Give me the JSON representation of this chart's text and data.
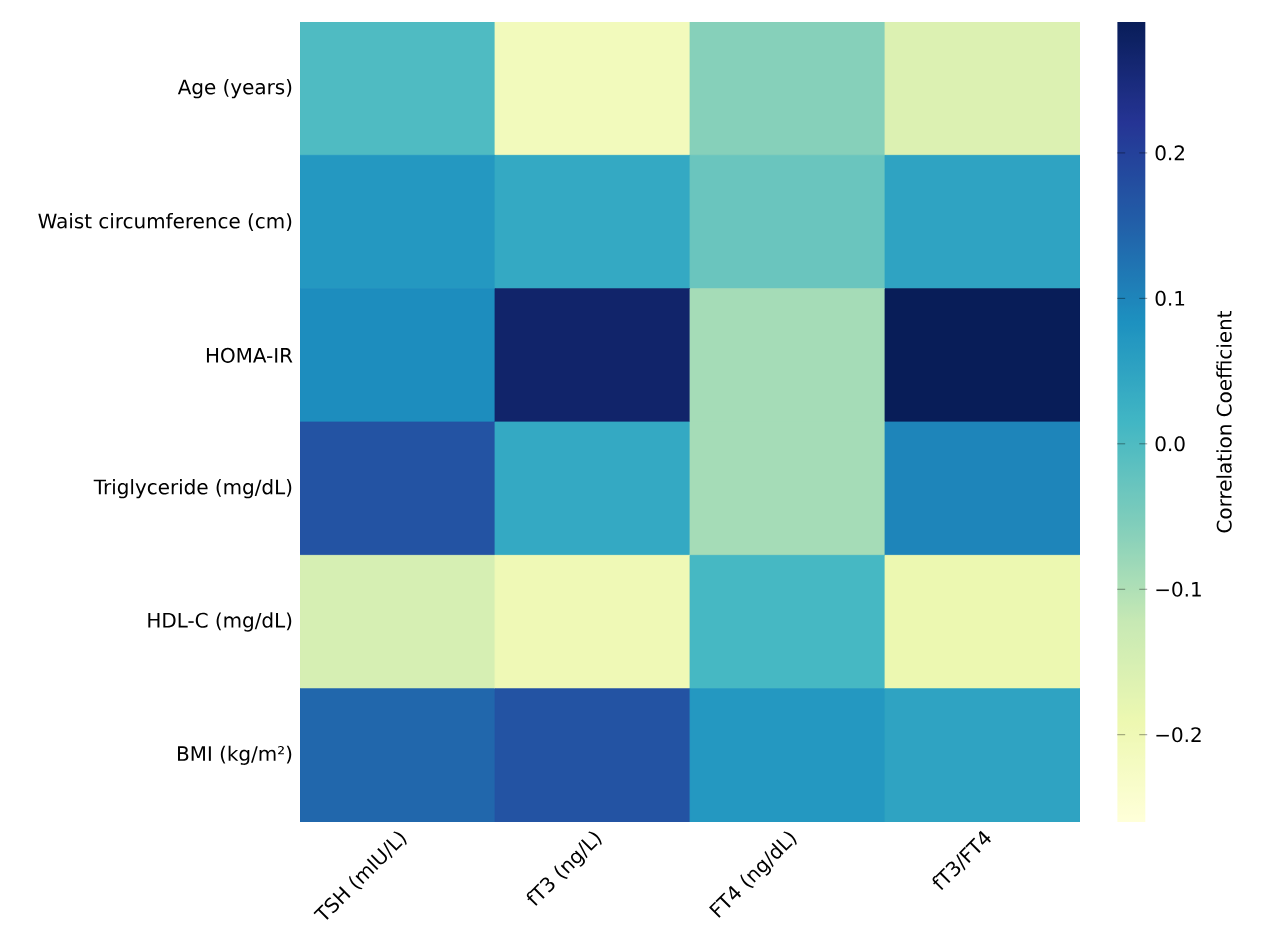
{
  "chart_data": {
    "type": "heatmap",
    "categories": [
      "TSH (mIU/L)",
      "fT3 (ng/L)",
      "FT4 (ng/dL)",
      "fT3/FT4"
    ],
    "y_categories": [
      "Age (years)",
      "Waist circumference (cm)",
      "HOMA-IR",
      "Triglyceride (mg/dL)",
      "HDL-C (mg/dL)",
      "BMI (kg/m²)"
    ],
    "cells": [
      [
        0.0,
        -0.21,
        -0.06,
        -0.16
      ],
      [
        0.07,
        0.04,
        -0.03,
        0.05
      ],
      [
        0.09,
        0.27,
        -0.09,
        0.31
      ],
      [
        0.17,
        0.04,
        -0.09,
        0.1
      ],
      [
        -0.15,
        -0.2,
        0.01,
        -0.19
      ],
      [
        0.14,
        0.17,
        0.07,
        0.05
      ]
    ],
    "clim": [
      -0.26,
      0.29
    ],
    "cticks": [
      {
        "value": -0.2,
        "label": "−0.2"
      },
      {
        "value": -0.1,
        "label": "−0.1"
      },
      {
        "value": 0.0,
        "label": "0.0"
      },
      {
        "value": 0.1,
        "label": "0.1"
      },
      {
        "value": 0.2,
        "label": "0.2"
      }
    ],
    "clabel": "Correlation Coefficient"
  }
}
